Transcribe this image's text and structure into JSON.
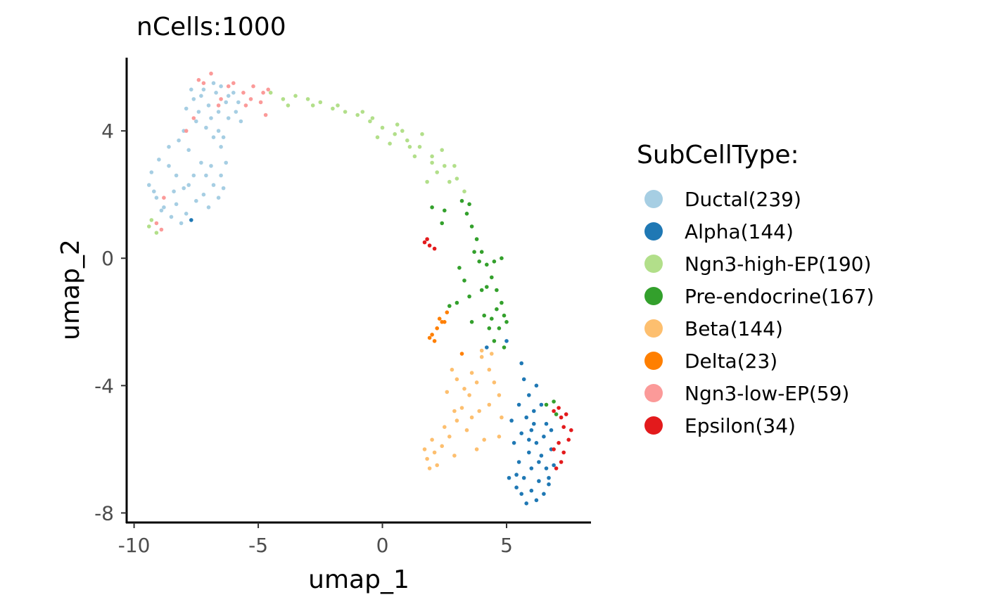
{
  "chart_data": {
    "type": "scatter",
    "title": "nCells:1000",
    "xlabel": "umap_1",
    "ylabel": "umap_2",
    "xlim": [
      -10.3,
      8.4
    ],
    "ylim": [
      -8.3,
      6.3
    ],
    "x_ticks": [
      -10,
      -5,
      0,
      5
    ],
    "x_tick_labels": [
      "-10",
      "-5",
      "0",
      "5"
    ],
    "y_ticks": [
      -8,
      -4,
      0,
      4
    ],
    "y_tick_labels": [
      "-8",
      "-4",
      "0",
      "4"
    ],
    "grid": false,
    "legend": {
      "title": "SubCellType:",
      "placement": "right",
      "entries": [
        {
          "label": "Ductal(239)",
          "color": "#a6cee3"
        },
        {
          "label": "Alpha(144)",
          "color": "#1f78b4"
        },
        {
          "label": "Ngn3-high-EP(190)",
          "color": "#b2df8a"
        },
        {
          "label": "Pre-endocrine(167)",
          "color": "#33a02c"
        },
        {
          "label": "Beta(144)",
          "color": "#fdbf6f"
        },
        {
          "label": "Delta(23)",
          "color": "#ff7f00"
        },
        {
          "label": "Ngn3-low-EP(59)",
          "color": "#fb9a99"
        },
        {
          "label": "Epsilon(34)",
          "color": "#e31a1c"
        }
      ]
    },
    "series": [
      {
        "name": "Ductal(239)",
        "color": "#a6cee3",
        "count": 239,
        "points": [
          [
            -7.2,
            5.3
          ],
          [
            -6.8,
            5.5
          ],
          [
            -6.5,
            5.4
          ],
          [
            -6.2,
            5.1
          ],
          [
            -7.6,
            5.0
          ],
          [
            -7.0,
            4.8
          ],
          [
            -6.6,
            4.6
          ],
          [
            -6.2,
            4.4
          ],
          [
            -5.9,
            4.6
          ],
          [
            -7.9,
            4.7
          ],
          [
            -7.5,
            4.3
          ],
          [
            -7.1,
            4.1
          ],
          [
            -6.8,
            3.8
          ],
          [
            -6.5,
            3.5
          ],
          [
            -6.3,
            3.0
          ],
          [
            -6.5,
            2.6
          ],
          [
            -6.8,
            2.3
          ],
          [
            -7.2,
            2.0
          ],
          [
            -7.0,
            1.6
          ],
          [
            -7.5,
            1.8
          ],
          [
            -8.0,
            2.2
          ],
          [
            -8.3,
            2.6
          ],
          [
            -8.6,
            2.9
          ],
          [
            -9.0,
            3.1
          ],
          [
            -9.3,
            2.7
          ],
          [
            -9.4,
            2.3
          ],
          [
            -9.1,
            1.9
          ],
          [
            -8.8,
            1.6
          ],
          [
            -8.5,
            1.3
          ],
          [
            -8.1,
            1.1
          ],
          [
            -7.8,
            3.4
          ],
          [
            -8.2,
            3.7
          ],
          [
            -8.6,
            3.5
          ],
          [
            -8.0,
            4.0
          ],
          [
            -7.3,
            3.0
          ],
          [
            -7.6,
            2.6
          ],
          [
            -6.9,
            2.9
          ],
          [
            -6.3,
            4.9
          ],
          [
            -5.8,
            4.9
          ],
          [
            -6.0,
            5.2
          ],
          [
            -7.4,
            4.6
          ],
          [
            -6.6,
            4.0
          ],
          [
            -6.9,
            4.4
          ],
          [
            -7.7,
            5.3
          ],
          [
            -6.4,
            3.8
          ],
          [
            -5.7,
            4.3
          ],
          [
            -7.3,
            5.1
          ],
          [
            -6.7,
            5.2
          ],
          [
            -8.4,
            2.1
          ],
          [
            -8.9,
            1.5
          ],
          [
            -9.2,
            2.1
          ],
          [
            -7.9,
            1.4
          ],
          [
            -6.6,
            1.9
          ],
          [
            -6.4,
            2.2
          ],
          [
            -7.1,
            2.6
          ],
          [
            -7.8,
            2.3
          ],
          [
            -8.3,
            1.7
          ]
        ]
      },
      {
        "name": "Alpha(144)",
        "color": "#1f78b4",
        "count": 144,
        "points": [
          [
            5.8,
            -5.0
          ],
          [
            6.0,
            -5.4
          ],
          [
            6.2,
            -5.8
          ],
          [
            6.4,
            -6.2
          ],
          [
            6.6,
            -6.6
          ],
          [
            6.3,
            -7.0
          ],
          [
            6.0,
            -7.3
          ],
          [
            5.7,
            -6.9
          ],
          [
            5.5,
            -6.4
          ],
          [
            5.9,
            -6.1
          ],
          [
            6.5,
            -5.6
          ],
          [
            6.8,
            -6.0
          ],
          [
            6.9,
            -6.5
          ],
          [
            6.7,
            -7.1
          ],
          [
            6.2,
            -7.6
          ],
          [
            5.6,
            -7.4
          ],
          [
            5.4,
            -6.8
          ],
          [
            5.3,
            -5.8
          ],
          [
            5.6,
            -5.5
          ],
          [
            6.1,
            -4.8
          ],
          [
            5.9,
            -4.3
          ],
          [
            6.2,
            -4.0
          ],
          [
            5.7,
            -3.8
          ],
          [
            6.4,
            -4.6
          ],
          [
            6.6,
            -5.2
          ],
          [
            6.0,
            -6.6
          ],
          [
            6.5,
            -7.4
          ],
          [
            5.8,
            -7.7
          ],
          [
            5.1,
            -6.9
          ],
          [
            5.2,
            -5.1
          ],
          [
            5.5,
            -4.6
          ],
          [
            5.0,
            -2.6
          ],
          [
            4.2,
            -2.8
          ],
          [
            5.6,
            -3.3
          ],
          [
            6.7,
            -6.9
          ],
          [
            5.9,
            -5.7
          ],
          [
            6.3,
            -6.4
          ],
          [
            5.4,
            -7.2
          ],
          [
            6.1,
            -5.2
          ],
          [
            6.8,
            -5.4
          ],
          [
            -7.7,
            1.2
          ]
        ]
      },
      {
        "name": "Ngn3-high-EP(190)",
        "color": "#b2df8a",
        "count": 190,
        "points": [
          [
            -4.5,
            5.2
          ],
          [
            -4.0,
            5.0
          ],
          [
            -3.5,
            5.1
          ],
          [
            -3.0,
            5.0
          ],
          [
            -2.5,
            4.9
          ],
          [
            -2.0,
            4.7
          ],
          [
            -1.5,
            4.6
          ],
          [
            -1.0,
            4.5
          ],
          [
            -0.5,
            4.3
          ],
          [
            0.0,
            4.1
          ],
          [
            0.5,
            3.9
          ],
          [
            1.0,
            3.7
          ],
          [
            1.5,
            3.5
          ],
          [
            2.0,
            3.2
          ],
          [
            2.5,
            2.9
          ],
          [
            3.0,
            2.5
          ],
          [
            3.3,
            2.1
          ],
          [
            1.8,
            2.4
          ],
          [
            2.2,
            2.7
          ],
          [
            0.3,
            3.6
          ],
          [
            -0.2,
            3.8
          ],
          [
            0.8,
            4.0
          ],
          [
            1.3,
            3.2
          ],
          [
            2.7,
            2.4
          ],
          [
            -3.8,
            4.8
          ],
          [
            -2.8,
            4.8
          ],
          [
            -1.8,
            4.8
          ],
          [
            -0.8,
            4.6
          ],
          [
            0.6,
            4.2
          ],
          [
            1.6,
            3.9
          ],
          [
            2.4,
            3.4
          ],
          [
            2.9,
            2.9
          ],
          [
            -9.4,
            1.0
          ],
          [
            -9.1,
            0.8
          ],
          [
            -9.3,
            1.2
          ],
          [
            -0.4,
            4.4
          ],
          [
            1.1,
            3.5
          ],
          [
            2.0,
            3.0
          ]
        ]
      },
      {
        "name": "Pre-endocrine(167)",
        "color": "#33a02c",
        "count": 167,
        "points": [
          [
            3.2,
            1.8
          ],
          [
            3.4,
            1.4
          ],
          [
            3.6,
            1.0
          ],
          [
            3.8,
            0.6
          ],
          [
            4.0,
            0.2
          ],
          [
            4.2,
            -0.2
          ],
          [
            4.4,
            -0.6
          ],
          [
            4.6,
            -1.0
          ],
          [
            4.8,
            -1.4
          ],
          [
            4.9,
            -1.8
          ],
          [
            4.7,
            -2.2
          ],
          [
            4.5,
            -2.6
          ],
          [
            4.3,
            -2.2
          ],
          [
            4.1,
            -1.8
          ],
          [
            4.6,
            -1.6
          ],
          [
            5.0,
            -2.0
          ],
          [
            4.2,
            -0.9
          ],
          [
            3.9,
            -0.1
          ],
          [
            3.1,
            -0.3
          ],
          [
            3.3,
            -0.7
          ],
          [
            3.0,
            -1.4
          ],
          [
            3.5,
            -1.2
          ],
          [
            2.7,
            -1.5
          ],
          [
            2.0,
            1.6
          ],
          [
            2.4,
            1.1
          ],
          [
            2.5,
            1.5
          ],
          [
            3.7,
            0.2
          ],
          [
            4.5,
            -0.1
          ],
          [
            4.8,
            0.0
          ],
          [
            3.5,
            1.7
          ],
          [
            4.0,
            -1.0
          ],
          [
            4.4,
            -1.9
          ],
          [
            3.6,
            -2.0
          ],
          [
            6.9,
            -4.5
          ],
          [
            7.0,
            -4.9
          ],
          [
            6.6,
            -4.6
          ],
          [
            4.9,
            -2.8
          ]
        ]
      },
      {
        "name": "Beta(144)",
        "color": "#fdbf6f",
        "count": 144,
        "points": [
          [
            4.0,
            -3.1
          ],
          [
            4.3,
            -3.5
          ],
          [
            4.5,
            -3.9
          ],
          [
            3.8,
            -3.9
          ],
          [
            3.5,
            -4.3
          ],
          [
            3.2,
            -4.7
          ],
          [
            3.0,
            -5.1
          ],
          [
            2.7,
            -5.6
          ],
          [
            2.4,
            -5.9
          ],
          [
            2.1,
            -6.1
          ],
          [
            1.8,
            -6.3
          ],
          [
            1.7,
            -6.0
          ],
          [
            2.0,
            -5.7
          ],
          [
            2.5,
            -5.3
          ],
          [
            2.9,
            -4.8
          ],
          [
            3.3,
            -4.1
          ],
          [
            3.6,
            -3.6
          ],
          [
            4.4,
            -3.0
          ],
          [
            4.7,
            -4.3
          ],
          [
            4.8,
            -5.0
          ],
          [
            4.7,
            -5.6
          ],
          [
            3.9,
            -4.8
          ],
          [
            3.4,
            -5.4
          ],
          [
            2.6,
            -4.2
          ],
          [
            3.0,
            -3.8
          ],
          [
            4.1,
            -5.7
          ],
          [
            3.8,
            -6.0
          ],
          [
            2.2,
            -6.5
          ],
          [
            1.9,
            -6.6
          ],
          [
            2.9,
            -6.2
          ],
          [
            4.3,
            -4.6
          ],
          [
            3.6,
            -5.0
          ],
          [
            2.8,
            -3.5
          ],
          [
            4.0,
            -2.9
          ]
        ]
      },
      {
        "name": "Delta(23)",
        "color": "#ff7f00",
        "count": 23,
        "points": [
          [
            2.0,
            -2.4
          ],
          [
            2.2,
            -2.2
          ],
          [
            2.4,
            -2.0
          ],
          [
            2.1,
            -2.6
          ],
          [
            2.3,
            -1.9
          ],
          [
            1.9,
            -2.5
          ],
          [
            2.6,
            -1.7
          ],
          [
            2.5,
            -2.0
          ],
          [
            3.2,
            -3.0
          ]
        ]
      },
      {
        "name": "Ngn3-low-EP(59)",
        "color": "#fb9a99",
        "count": 59,
        "points": [
          [
            -7.2,
            5.5
          ],
          [
            -6.9,
            5.8
          ],
          [
            -6.2,
            5.4
          ],
          [
            -5.6,
            5.2
          ],
          [
            -5.2,
            5.4
          ],
          [
            -4.8,
            5.2
          ],
          [
            -4.6,
            5.3
          ],
          [
            -4.9,
            4.9
          ],
          [
            -5.5,
            4.8
          ],
          [
            -7.6,
            4.4
          ],
          [
            -7.9,
            4.0
          ],
          [
            -6.6,
            4.8
          ],
          [
            -8.8,
            1.9
          ],
          [
            -9.1,
            1.1
          ],
          [
            -8.9,
            0.9
          ],
          [
            -4.7,
            4.5
          ],
          [
            -5.3,
            5.0
          ],
          [
            -6.0,
            5.5
          ],
          [
            -7.4,
            5.6
          ],
          [
            -6.5,
            5.0
          ]
        ]
      },
      {
        "name": "Epsilon(34)",
        "color": "#e31a1c",
        "count": 34,
        "points": [
          [
            1.7,
            0.5
          ],
          [
            1.9,
            0.4
          ],
          [
            1.8,
            0.6
          ],
          [
            2.1,
            0.3
          ],
          [
            7.1,
            -4.7
          ],
          [
            7.4,
            -4.9
          ],
          [
            7.3,
            -5.3
          ],
          [
            7.5,
            -5.7
          ],
          [
            7.3,
            -6.1
          ],
          [
            7.2,
            -6.4
          ],
          [
            7.0,
            -6.6
          ],
          [
            6.9,
            -6.0
          ],
          [
            7.2,
            -5.0
          ],
          [
            7.6,
            -5.4
          ],
          [
            7.1,
            -5.8
          ],
          [
            6.9,
            -4.8
          ]
        ]
      }
    ]
  }
}
